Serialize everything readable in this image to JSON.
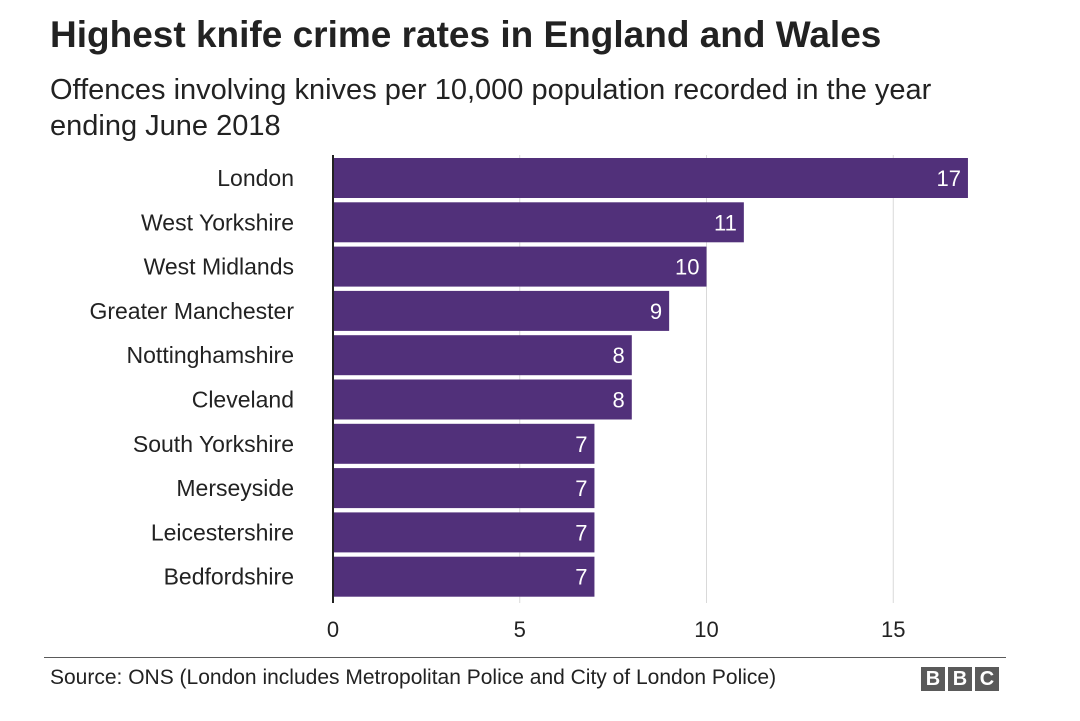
{
  "title": "Highest knife crime rates in England and Wales",
  "subtitle": "Offences involving knives per 10,000 population recorded in the year ending June 2018",
  "source": "Source: ONS (London includes Metropolitan Police and City of London Police)",
  "logo": [
    "B",
    "B",
    "C"
  ],
  "colors": {
    "bar": "#51307a",
    "grid": "#d9d9d9",
    "axis": "#222222",
    "label": "#ffffff"
  },
  "chart_data": {
    "type": "bar",
    "orientation": "horizontal",
    "title": "Highest knife crime rates in England and Wales",
    "subtitle": "Offences involving knives per 10,000 population recorded in the year ending June 2018",
    "categories": [
      "London",
      "West Yorkshire",
      "West Midlands",
      "Greater Manchester",
      "Nottinghamshire",
      "Cleveland",
      "South Yorkshire",
      "Merseyside",
      "Leicestershire",
      "Bedfordshire"
    ],
    "values": [
      17,
      11,
      10,
      9,
      8,
      8,
      7,
      7,
      7,
      7
    ],
    "xlim": [
      0,
      17
    ],
    "xticks": [
      0,
      5,
      10,
      15
    ],
    "xlabel": "",
    "ylabel": "",
    "grid": true
  }
}
